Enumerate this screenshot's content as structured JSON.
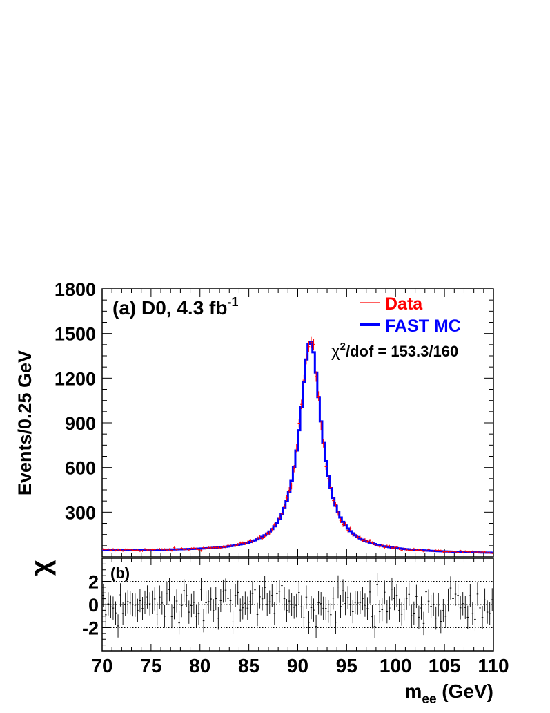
{
  "chart_data": [
    {
      "type": "histogram",
      "panel": "a",
      "title": "(a) D0, 4.3 fb",
      "title_superscript": "-1",
      "ylabel": "Events/0.25 GeV",
      "xlim": [
        70,
        110
      ],
      "ylim": [
        0,
        1800
      ],
      "yticks": [
        "300",
        "600",
        "900",
        "1200",
        "1500",
        "1800"
      ],
      "legend_position": "top-right",
      "legend": [
        {
          "label": "Data",
          "color": "#ff0000"
        },
        {
          "label": "FAST MC",
          "color": "#0000ff"
        }
      ],
      "chi2_prefix": "χ",
      "chi2_superscript": "2",
      "chi2_text": "/dof = 153.3/160",
      "bin_width": 0.25,
      "model": {
        "shape": "relativistic Breit-Wigner plus smearing",
        "peak_x": 91.3,
        "peak_y": 1450,
        "sample_points": [
          [
            70,
            40
          ],
          [
            72,
            42
          ],
          [
            75,
            50
          ],
          [
            78,
            72
          ],
          [
            80,
            90
          ],
          [
            82,
            135
          ],
          [
            84,
            205
          ],
          [
            85,
            260
          ],
          [
            86,
            350
          ],
          [
            87,
            480
          ],
          [
            88,
            690
          ],
          [
            89,
            980
          ],
          [
            90,
            1280
          ],
          [
            91,
            1440
          ],
          [
            91.5,
            1450
          ],
          [
            92,
            1420
          ],
          [
            93,
            1230
          ],
          [
            94,
            940
          ],
          [
            95,
            690
          ],
          [
            96,
            500
          ],
          [
            97,
            360
          ],
          [
            98,
            255
          ],
          [
            99,
            185
          ],
          [
            100,
            135
          ],
          [
            102,
            85
          ],
          [
            105,
            52
          ],
          [
            108,
            30
          ],
          [
            110,
            20
          ]
        ]
      }
    },
    {
      "type": "scatter-errorbar",
      "panel": "b",
      "title": "(b)",
      "ylabel": "χ",
      "xlabel": "m",
      "xlabel_subscript": "ee",
      "xlabel_suffix": " (GeV)",
      "xlim": [
        70,
        110
      ],
      "ylim": [
        -4,
        4
      ],
      "xticks": [
        "70",
        "75",
        "80",
        "85",
        "90",
        "95",
        "100",
        "105",
        "110"
      ],
      "yticks": [
        "2",
        "0",
        "-2"
      ],
      "reference_lines": [
        -2,
        0,
        2
      ],
      "error_bar_half_height": 1,
      "points": "160 bins, pseudo-random scatter approx. uniform in [-2.5, 2.5]"
    }
  ]
}
